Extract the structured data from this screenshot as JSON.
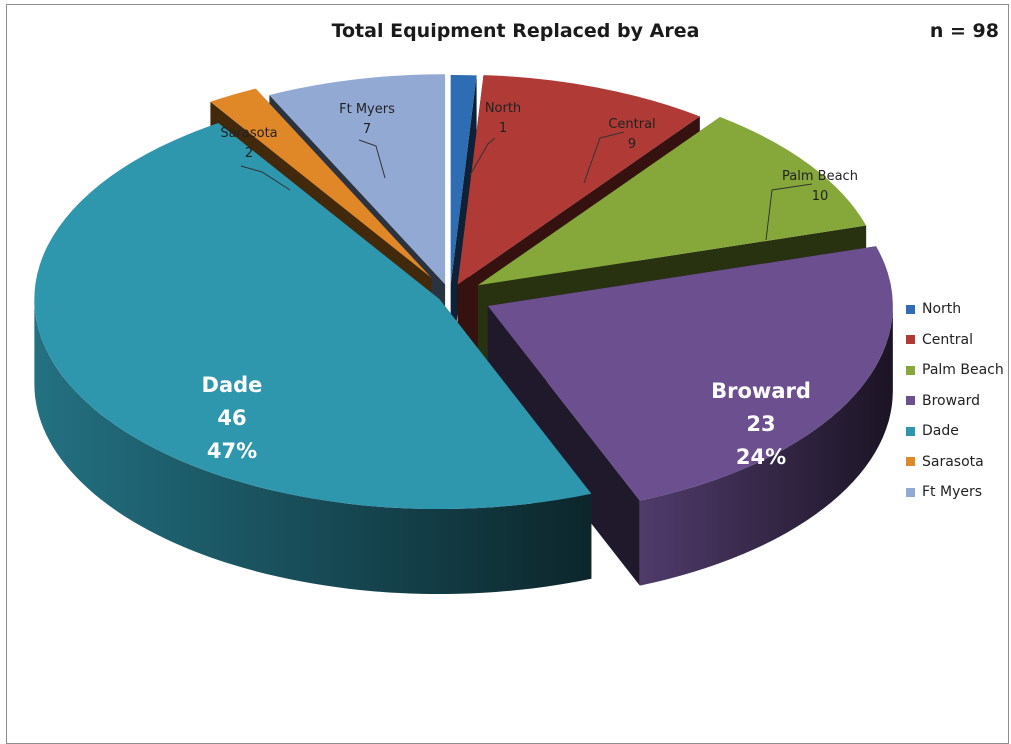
{
  "chart_data": {
    "type": "pie",
    "title": "Total Equipment Replaced by Area",
    "annotation": "n = 98",
    "slices": [
      {
        "label": "North",
        "value": 1,
        "color": "#2e6db3"
      },
      {
        "label": "Central",
        "value": 9,
        "color": "#b03a36"
      },
      {
        "label": "Palm Beach",
        "value": 10,
        "color": "#86a83a"
      },
      {
        "label": "Broward",
        "value": 23,
        "percent": "24%",
        "color": "#6b4f8f"
      },
      {
        "label": "Dade",
        "value": 46,
        "percent": "47%",
        "color": "#2e96ad"
      },
      {
        "label": "Sarasota",
        "value": 2,
        "color": "#e08828"
      },
      {
        "label": "Ft Myers",
        "value": 7,
        "color": "#92a9d4"
      }
    ],
    "legend_position": "right"
  }
}
